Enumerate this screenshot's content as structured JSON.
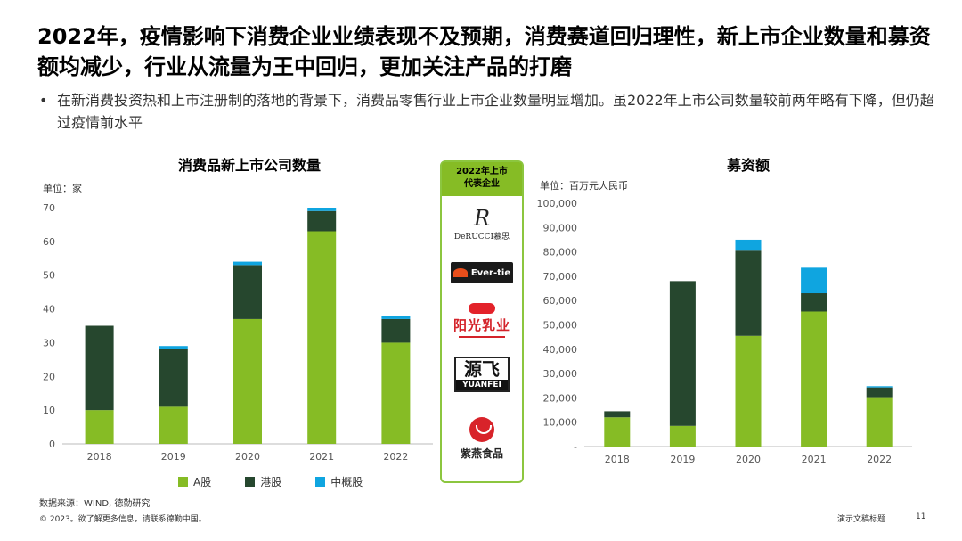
{
  "headline": "2022年，疫情影响下消费企业业绩表现不及预期，消费赛道回归理性，新上市企业数量和募资额均减少，行业从流量为王中回归，更加关注产品的打磨",
  "bullet": "在新消费投资热和上市注册制的落地的背景下，消费品零售行业上市企业数量明显增加。虽2022年上市公司数量较前两年略有下降，但仍超过疫情前水平",
  "chart_data": [
    {
      "type": "bar",
      "stacked": true,
      "title": "消费品新上市公司数量",
      "unit_label": "单位：家",
      "categories": [
        "2018",
        "2019",
        "2020",
        "2021",
        "2022"
      ],
      "series": [
        {
          "name": "A股",
          "color": "#86bc25",
          "values": [
            10,
            11,
            37,
            63,
            30
          ]
        },
        {
          "name": "港股",
          "color": "#26472e",
          "values": [
            25,
            17,
            16,
            6,
            7
          ]
        },
        {
          "name": "中概股",
          "color": "#0fa5e0",
          "values": [
            0,
            1,
            1,
            1,
            1
          ]
        }
      ],
      "yticks": [
        "0",
        "10",
        "20",
        "30",
        "40",
        "50",
        "60",
        "70"
      ],
      "ylim": [
        0,
        70
      ],
      "grid": false
    },
    {
      "type": "bar",
      "stacked": true,
      "title": "募资额",
      "unit_label": "单位：百万元人民币",
      "categories": [
        "2018",
        "2019",
        "2020",
        "2021",
        "2022"
      ],
      "series": [
        {
          "name": "A股",
          "color": "#86bc25",
          "values": [
            12000,
            8500,
            45500,
            55500,
            20300
          ]
        },
        {
          "name": "港股",
          "color": "#26472e",
          "values": [
            2500,
            59500,
            35000,
            7500,
            4000
          ]
        },
        {
          "name": "中概股",
          "color": "#0fa5e0",
          "values": [
            0,
            0,
            4500,
            10500,
            500
          ]
        }
      ],
      "yticks": [
        "-",
        "10,000",
        "20,000",
        "30,000",
        "40,000",
        "50,000",
        "60,000",
        "70,000",
        "80,000",
        "90,000",
        "100,000"
      ],
      "ylim": [
        0,
        100000
      ],
      "grid": false
    }
  ],
  "legend": [
    {
      "label": "A股",
      "color": "#86bc25"
    },
    {
      "label": "港股",
      "color": "#26472e"
    },
    {
      "label": "中概股",
      "color": "#0fa5e0"
    }
  ],
  "panel": {
    "title_line1": "2022年上市",
    "title_line2": "代表企业",
    "logos": [
      {
        "icon": "derucci-logo",
        "text": "DeRUCCI慕思",
        "mark": "R"
      },
      {
        "icon": "ever-tie-logo",
        "text": "Ever-tie"
      },
      {
        "icon": "yangguang-dairy-logo",
        "text": "阳光乳业"
      },
      {
        "icon": "yuanfei-logo",
        "text": "YUANFEI",
        "mark": "源飞"
      },
      {
        "icon": "ziyan-logo",
        "text": "紫燕食品"
      }
    ]
  },
  "source": "数据来源：WIND, 德勤研究",
  "copyright": "© 2023。欲了解更多信息，请联系德勤中国。",
  "footer_label": "演示文稿标题",
  "page_number": "11"
}
